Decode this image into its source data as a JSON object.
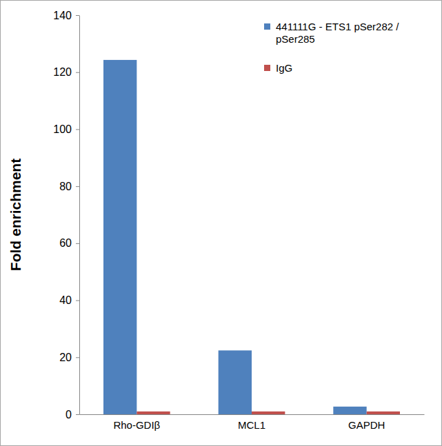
{
  "chart_data": {
    "type": "bar",
    "categories": [
      "Rho-GDIβ",
      "MCL1",
      "GAPDH"
    ],
    "series": [
      {
        "name": "441111G - ETS1 pSer282 / pSer285",
        "color": "#4f81bd",
        "values": [
          124.3,
          22.4,
          2.7
        ]
      },
      {
        "name": "IgG",
        "color": "#c0504d",
        "values": [
          1,
          1,
          1
        ]
      }
    ],
    "y_label": "Fold enrichment",
    "ylim": [
      0,
      140
    ],
    "yticks": [
      0,
      20,
      40,
      60,
      80,
      100,
      120,
      140
    ],
    "legend": "top-right"
  }
}
